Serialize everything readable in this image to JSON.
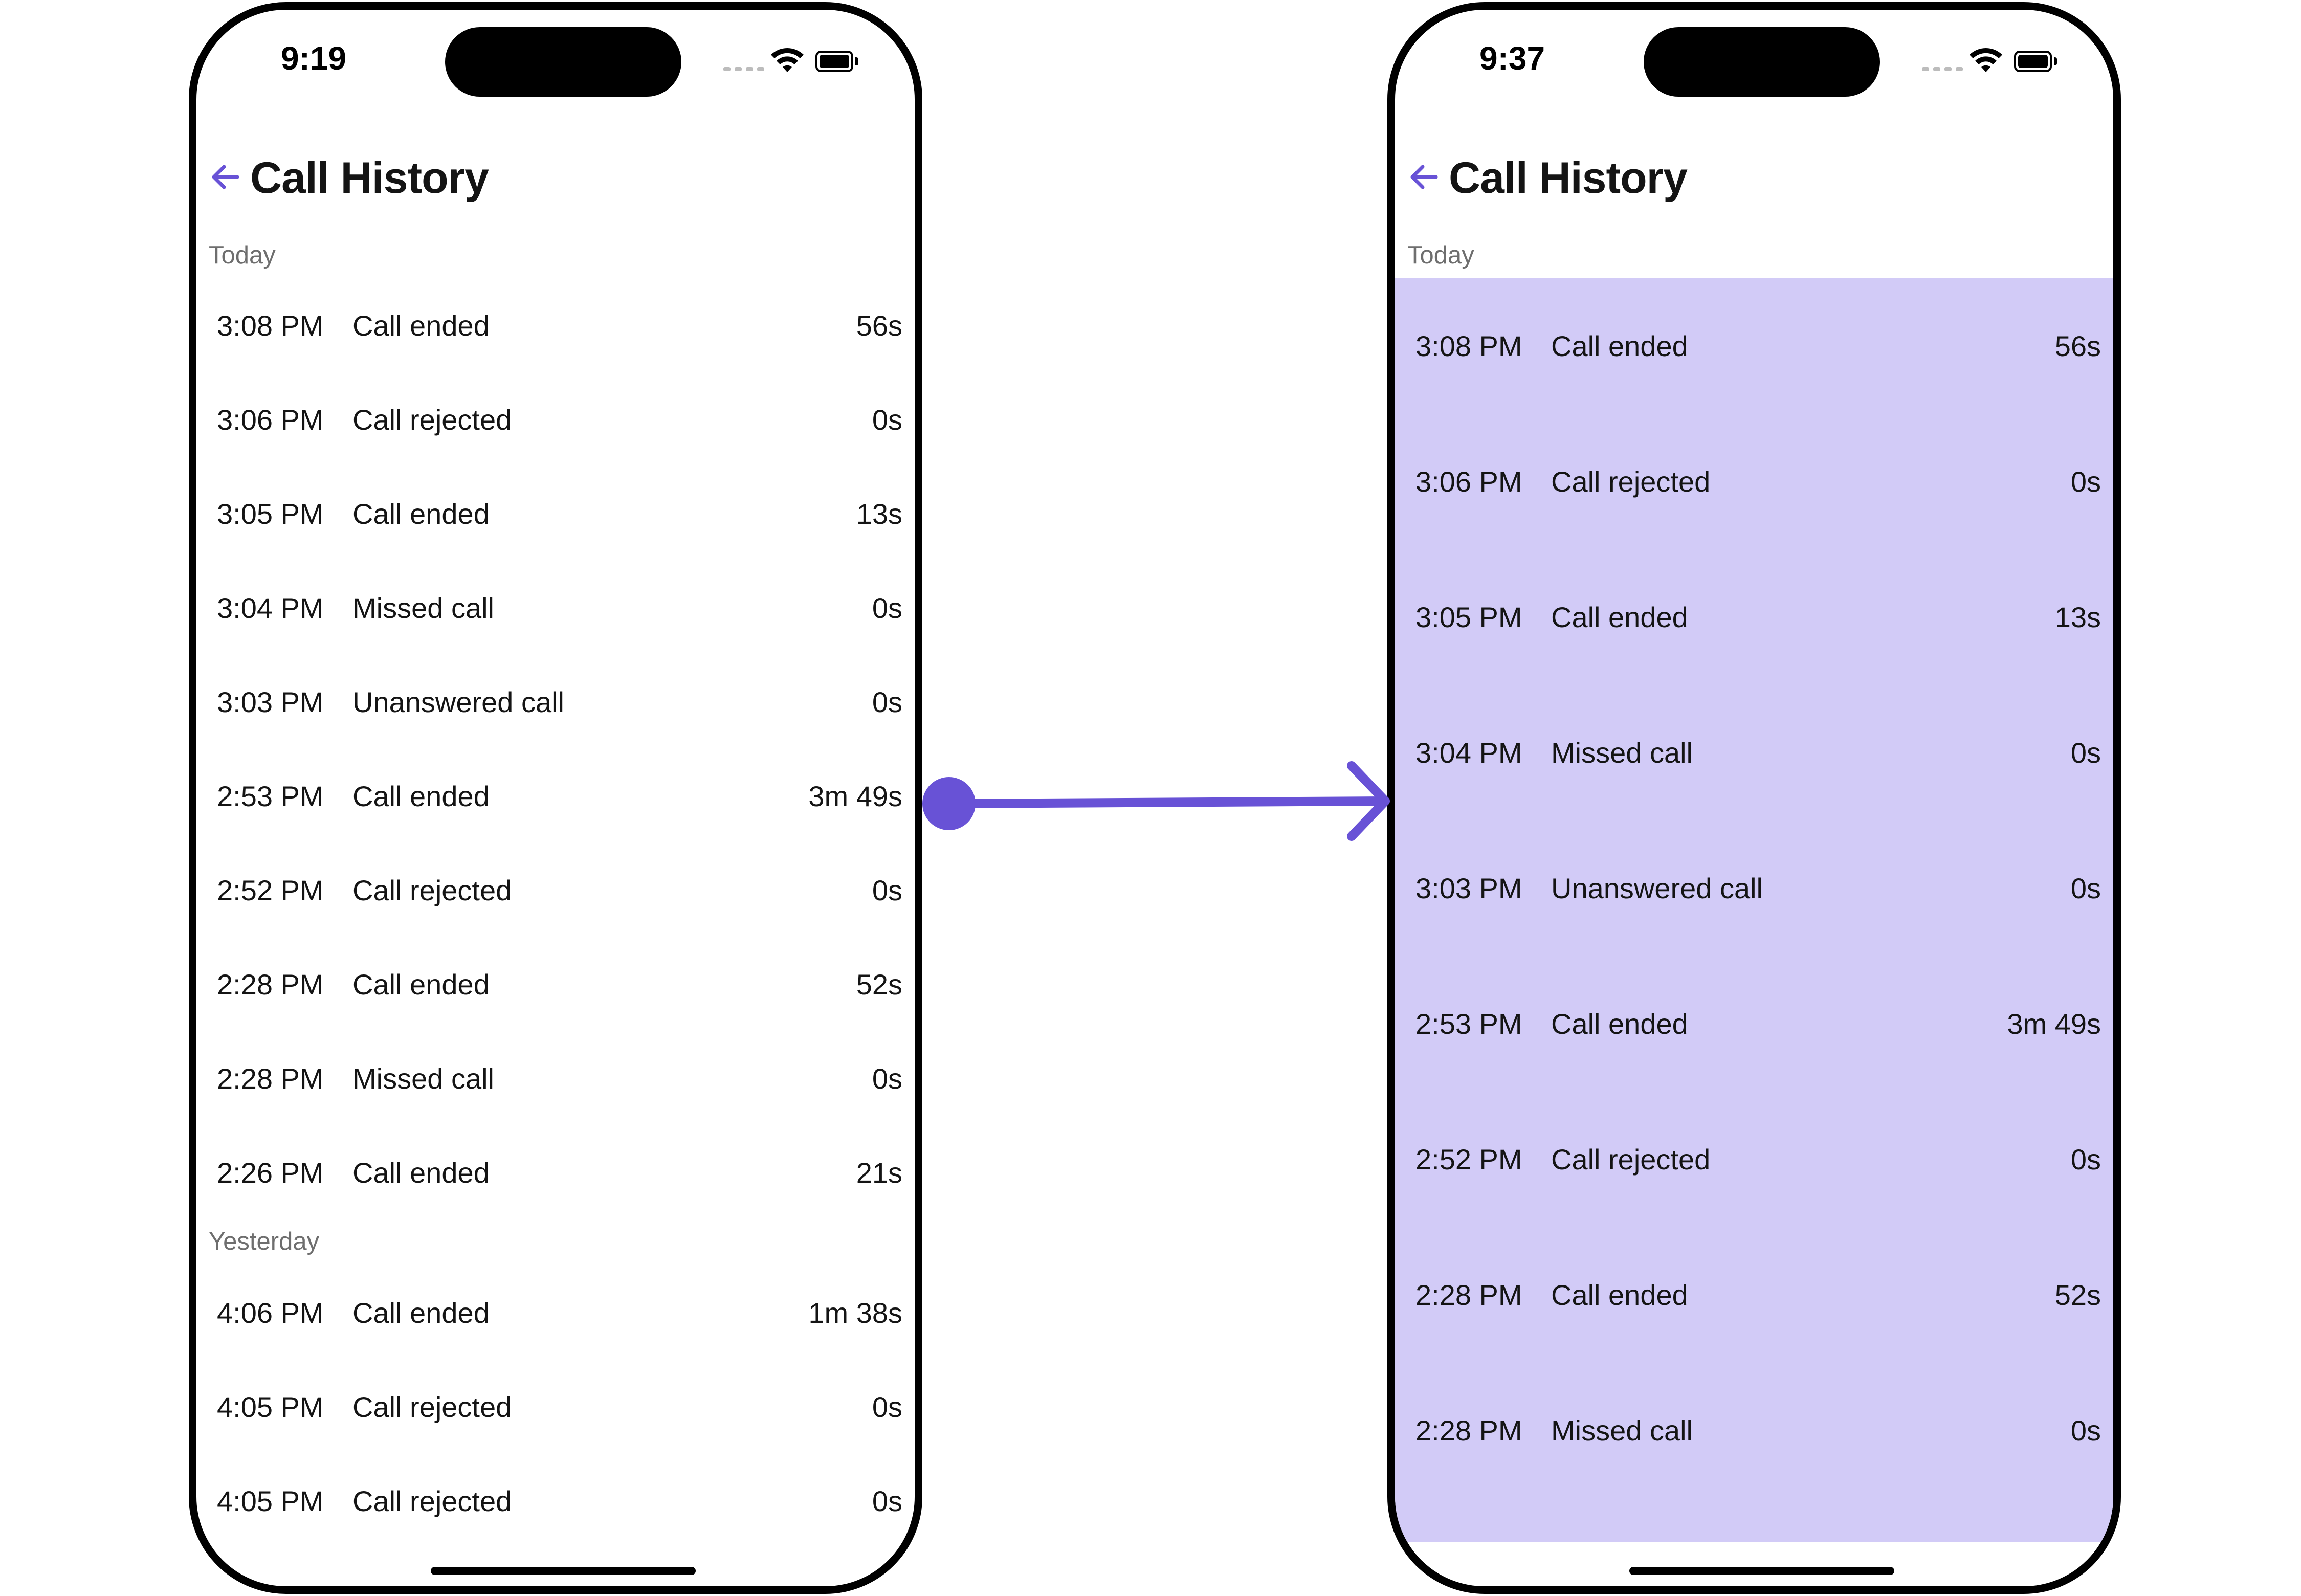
{
  "colors": {
    "accent": "#6852d6",
    "highlight": "#d2cbf7"
  },
  "left_screen": {
    "status_time": "9:19",
    "title": "Call History",
    "sections": [
      {
        "label": "Today",
        "rows": [
          {
            "time": "3:08 PM",
            "status": "Call ended",
            "duration": "56s"
          },
          {
            "time": "3:06 PM",
            "status": "Call rejected",
            "duration": "0s"
          },
          {
            "time": "3:05 PM",
            "status": "Call ended",
            "duration": "13s"
          },
          {
            "time": "3:04 PM",
            "status": "Missed call",
            "duration": "0s"
          },
          {
            "time": "3:03 PM",
            "status": "Unanswered call",
            "duration": "0s"
          },
          {
            "time": "2:53 PM",
            "status": "Call ended",
            "duration": "3m 49s"
          },
          {
            "time": "2:52 PM",
            "status": "Call rejected",
            "duration": "0s"
          },
          {
            "time": "2:28 PM",
            "status": "Call ended",
            "duration": "52s"
          },
          {
            "time": "2:28 PM",
            "status": "Missed call",
            "duration": "0s"
          },
          {
            "time": "2:26 PM",
            "status": "Call ended",
            "duration": "21s"
          }
        ]
      },
      {
        "label": "Yesterday",
        "rows": [
          {
            "time": "4:06 PM",
            "status": "Call ended",
            "duration": "1m 38s"
          },
          {
            "time": "4:05 PM",
            "status": "Call rejected",
            "duration": "0s"
          },
          {
            "time": "4:05 PM",
            "status": "Call rejected",
            "duration": "0s"
          }
        ]
      }
    ]
  },
  "right_screen": {
    "status_time": "9:37",
    "title": "Call History",
    "section_label": "Today",
    "rows": [
      {
        "time": "3:08 PM",
        "status": "Call ended",
        "duration": "56s"
      },
      {
        "time": "3:06 PM",
        "status": "Call rejected",
        "duration": "0s"
      },
      {
        "time": "3:05 PM",
        "status": "Call ended",
        "duration": "13s"
      },
      {
        "time": "3:04 PM",
        "status": "Missed call",
        "duration": "0s"
      },
      {
        "time": "3:03 PM",
        "status": "Unanswered call",
        "duration": "0s"
      },
      {
        "time": "2:53 PM",
        "status": "Call ended",
        "duration": "3m 49s"
      },
      {
        "time": "2:52 PM",
        "status": "Call rejected",
        "duration": "0s"
      },
      {
        "time": "2:28 PM",
        "status": "Call ended",
        "duration": "52s"
      },
      {
        "time": "2:28 PM",
        "status": "Missed call",
        "duration": "0s"
      }
    ]
  },
  "icons": {
    "back": "arrow-left-icon",
    "wifi": "wifi-icon",
    "battery": "battery-icon",
    "signal": "signal-dots-icon"
  }
}
